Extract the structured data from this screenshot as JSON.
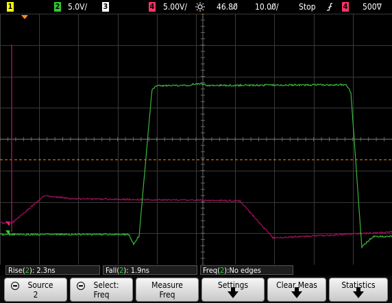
{
  "topbar": {
    "ch1": {
      "num": "1",
      "color": "#ffff00",
      "scale": ""
    },
    "ch2": {
      "num": "2",
      "color": "#2dcc2d",
      "scale": "5.0V/"
    },
    "ch3": {
      "num": "3",
      "color": "#ffffff",
      "scale": ""
    },
    "ch4": {
      "num": "4",
      "color": "#ff3366",
      "scale": "5.00V/"
    },
    "trigger_icon": "sun-trigger-icon",
    "delay": "46.80̸",
    "timebase": "10.00̸/",
    "run_state": "Stop",
    "edge_icon": "rising-edge-icon",
    "trig_source": "4",
    "trig_level": "500∇"
  },
  "measurements": [
    {
      "prefix": "Rise(",
      "chan": "2",
      "suffix": "): 2.3ns"
    },
    {
      "prefix": "Fall(",
      "chan": "2",
      "suffix": "): 1.9ns"
    },
    {
      "prefix": "Freq(",
      "chan": "2",
      "suffix": "):No edges"
    }
  ],
  "softkeys": {
    "source": {
      "line1": "Source",
      "line2": "2"
    },
    "select": {
      "line1": "Select:",
      "line2": "Freq"
    },
    "measure": {
      "line1": "Measure",
      "line2": "Freq"
    },
    "settings": {
      "line1": "Settings"
    },
    "clear": {
      "line1": "Clear Meas"
    },
    "stats": {
      "line1": "Statistics"
    }
  },
  "colors": {
    "grid": "#3a3a3a",
    "trace_green": "#3cb83c",
    "trace_magenta": "#a0105a",
    "trigger_marker": "#ff8c1a"
  }
}
